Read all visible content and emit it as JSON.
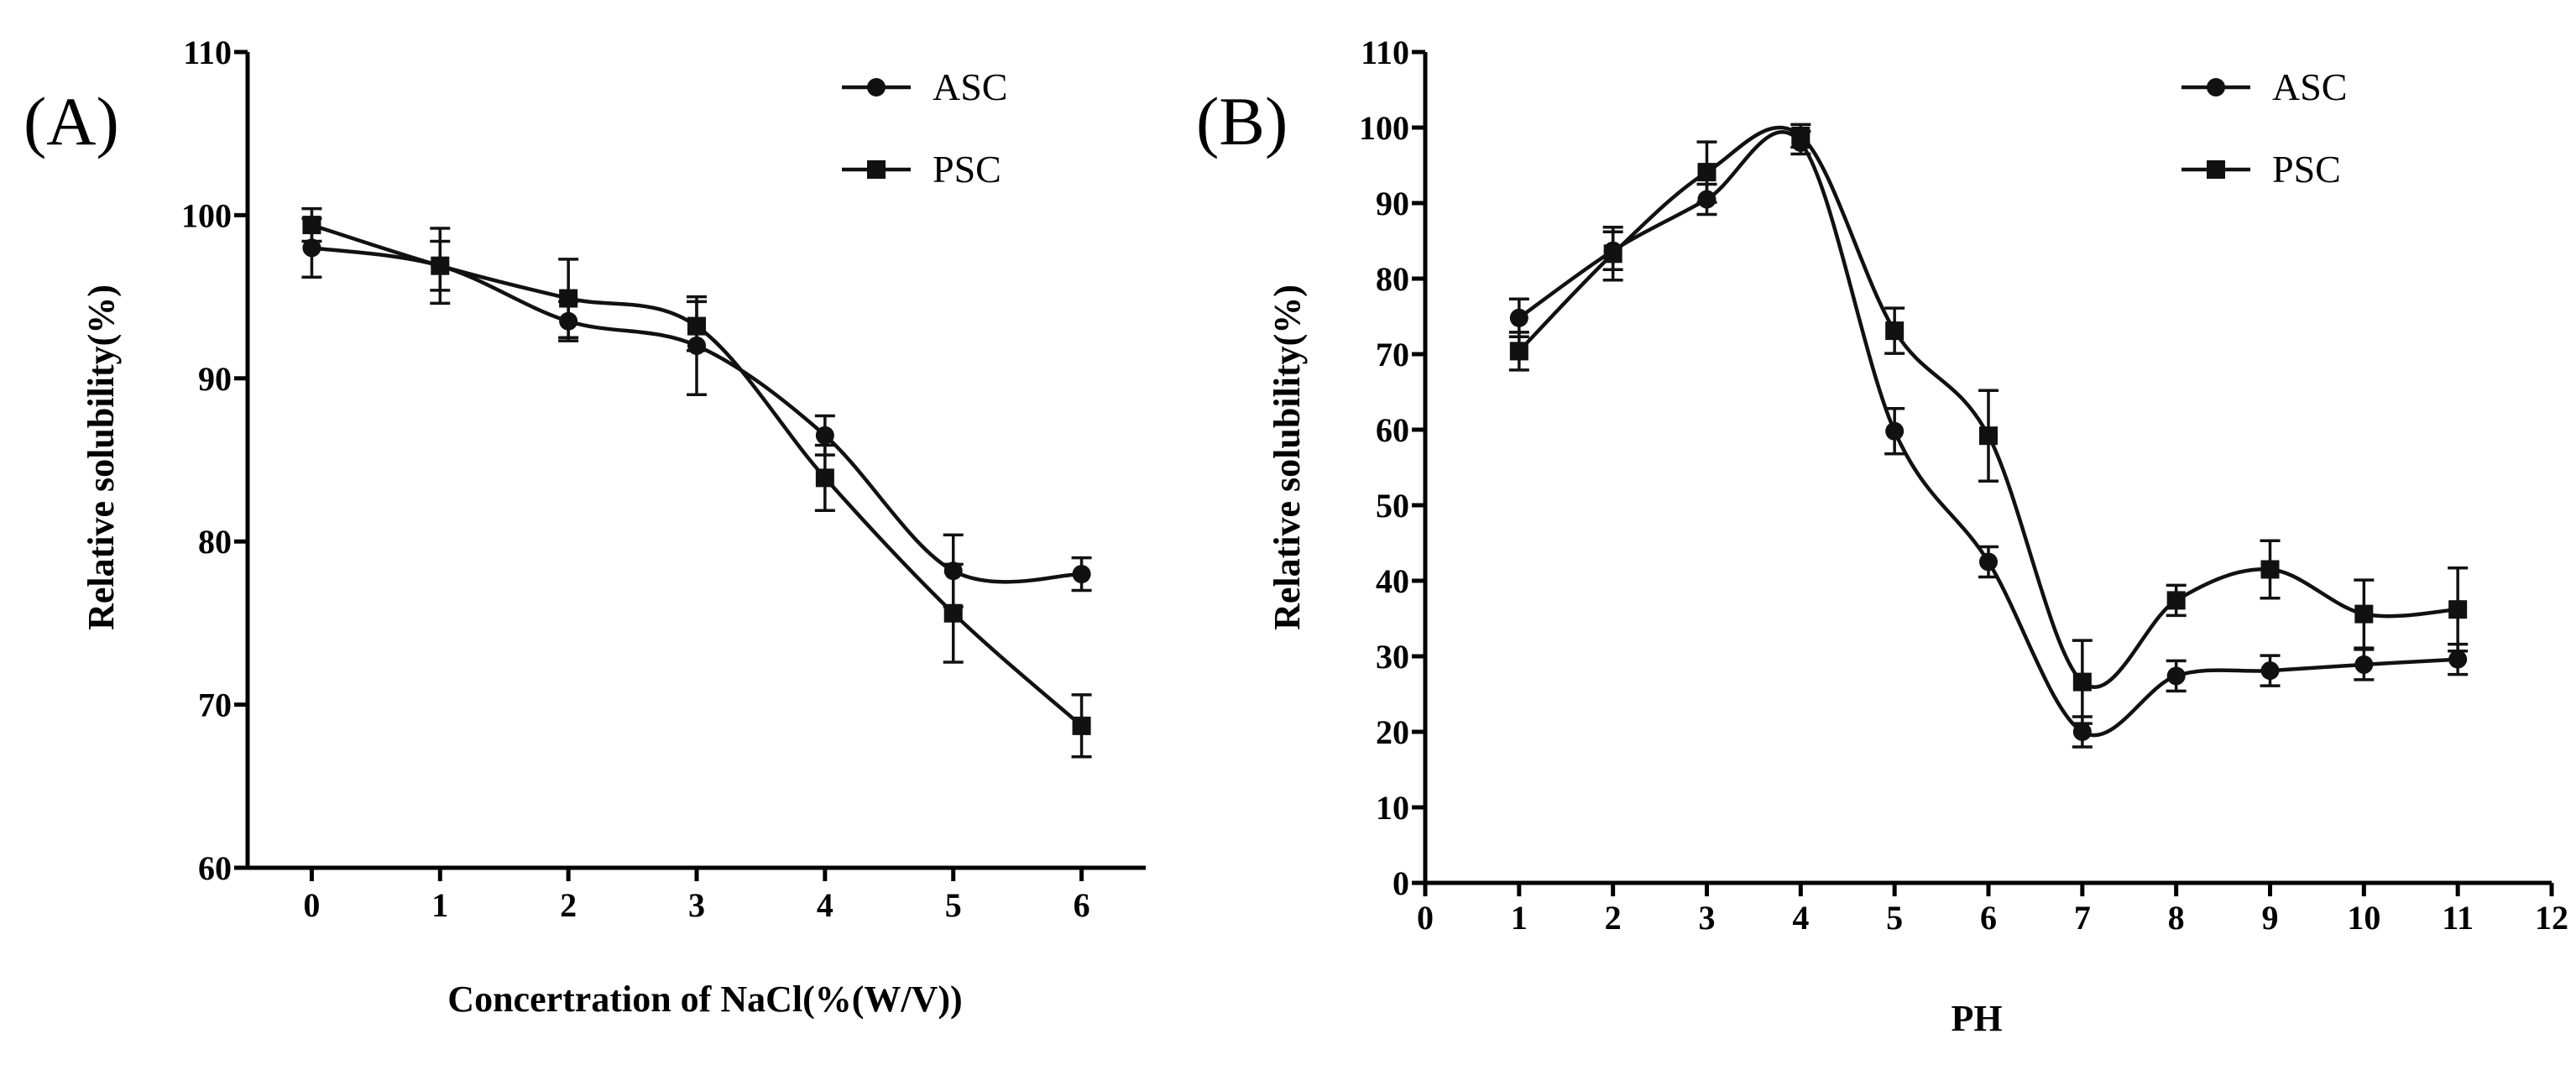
{
  "chart_data": [
    {
      "panel_label": "(A)",
      "type": "line",
      "xlabel": "Concertration of NaCl(%(W/V))",
      "ylabel": "Relative solubility(%)",
      "xlim": [
        -0.5,
        6.5
      ],
      "ylim": [
        60,
        110
      ],
      "x_ticks": [
        0,
        1,
        2,
        3,
        4,
        5,
        6
      ],
      "y_ticks": [
        60,
        70,
        80,
        90,
        100,
        110
      ],
      "legend": [
        "ASC",
        "PSC"
      ],
      "legend_position": "top-right",
      "x": [
        0,
        1,
        2,
        3,
        4,
        5,
        6
      ],
      "series": [
        {
          "name": "ASC",
          "marker": "circle",
          "values": [
            98.0,
            96.9,
            93.5,
            92.0,
            86.5,
            78.2,
            78.0
          ],
          "errors": [
            1.8,
            1.5,
            1.2,
            3.0,
            1.2,
            2.2,
            1.0
          ]
        },
        {
          "name": "PSC",
          "marker": "square",
          "values": [
            99.4,
            96.9,
            94.9,
            93.2,
            83.9,
            75.6,
            68.7
          ],
          "errors": [
            1.0,
            2.3,
            2.4,
            1.5,
            2.0,
            3.0,
            1.9
          ]
        }
      ]
    },
    {
      "panel_label": "(B)",
      "type": "line",
      "xlabel": "PH",
      "ylabel": "Relative solubility(%)",
      "xlim": [
        0,
        12
      ],
      "ylim": [
        0,
        110
      ],
      "x_ticks": [
        0,
        1,
        2,
        3,
        4,
        5,
        6,
        7,
        8,
        9,
        10,
        11,
        12
      ],
      "y_ticks": [
        0,
        10,
        20,
        30,
        40,
        50,
        60,
        70,
        80,
        90,
        100,
        110
      ],
      "legend": [
        "ASC",
        "PSC"
      ],
      "legend_position": "top-right",
      "x": [
        1,
        2,
        3,
        4,
        5,
        6,
        7,
        8,
        9,
        10,
        11
      ],
      "series": [
        {
          "name": "ASC",
          "marker": "circle",
          "values": [
            74.8,
            83.7,
            90.5,
            98.0,
            59.8,
            42.5,
            20.0,
            27.4,
            28.1,
            28.9,
            29.6
          ],
          "errors": [
            2.5,
            2.5,
            2.0,
            1.5,
            3.0,
            2.0,
            2.0,
            2.0,
            2.0,
            2.0,
            2.0
          ]
        },
        {
          "name": "PSC",
          "marker": "square",
          "values": [
            70.4,
            83.3,
            94.1,
            98.9,
            73.1,
            59.2,
            26.6,
            37.4,
            41.5,
            35.6,
            36.2
          ],
          "errors": [
            2.5,
            3.5,
            4.0,
            1.5,
            3.0,
            6.0,
            5.5,
            2.0,
            3.8,
            4.5,
            5.5
          ]
        }
      ]
    }
  ]
}
